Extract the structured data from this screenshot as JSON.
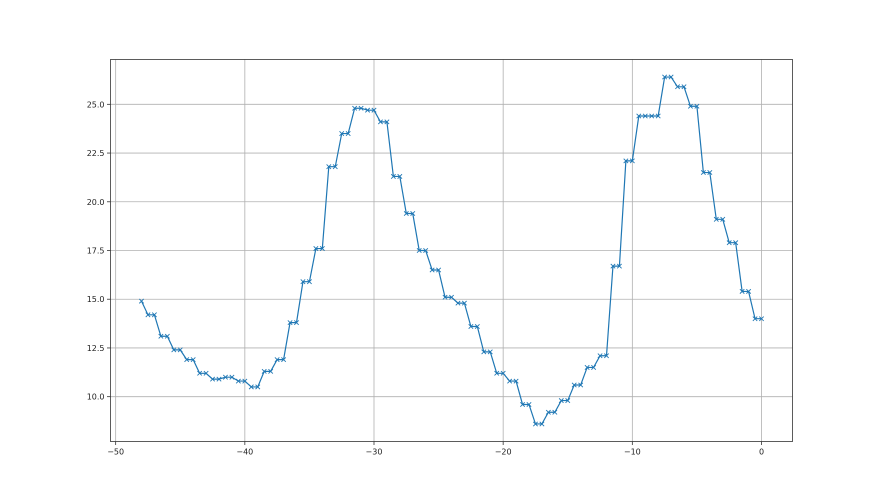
{
  "chart_data": {
    "type": "line",
    "title": "",
    "xlabel": "",
    "ylabel": "",
    "xlim": [
      -50.4,
      2.4
    ],
    "ylim": [
      7.7,
      27.3
    ],
    "grid": true,
    "marker": "x",
    "line_color": "#1f77b4",
    "x_ticks": [
      -50,
      -40,
      -30,
      -20,
      -10,
      0
    ],
    "x_tick_labels": [
      "−50",
      "−40",
      "−30",
      "−20",
      "−10",
      "0"
    ],
    "y_ticks": [
      10.0,
      12.5,
      15.0,
      17.5,
      20.0,
      22.5,
      25.0
    ],
    "y_tick_labels": [
      "10.0",
      "12.5",
      "15.0",
      "17.5",
      "20.0",
      "22.5",
      "25.0"
    ],
    "series": [
      {
        "x": [
          -48,
          -47.5,
          -47,
          -46.5,
          -46,
          -45.5,
          -45,
          -44.5,
          -44,
          -43.5,
          -43,
          -42.5,
          -42,
          -41.5,
          -41,
          -40.5,
          -40,
          -39.5,
          -39,
          -38.5,
          -38,
          -37.5,
          -37,
          -36.5,
          -36,
          -35.5,
          -35,
          -34.5,
          -34,
          -33.5,
          -33,
          -32.5,
          -32,
          -31.5,
          -31,
          -30.5,
          -30,
          -29.5,
          -29,
          -28.5,
          -28,
          -27.5,
          -27,
          -26.5,
          -26,
          -25.5,
          -25,
          -24.5,
          -24,
          -23.5,
          -23,
          -22.5,
          -22,
          -21.5,
          -21,
          -20.5,
          -20,
          -19.5,
          -19,
          -18.5,
          -18,
          -17.5,
          -17,
          -16.5,
          -16,
          -15.5,
          -15,
          -14.5,
          -14,
          -13.5,
          -13,
          -12.5,
          -12,
          -11.5,
          -11,
          -10.5,
          -10,
          -9.5,
          -9,
          -8.5,
          -8,
          -7.5,
          -7,
          -6.5,
          -6,
          -5.5,
          -5,
          -4.5,
          -4,
          -3.5,
          -3,
          -2.5,
          -2,
          -1.5,
          -1,
          -0.5,
          0
        ],
        "y": [
          14.9,
          14.2,
          14.2,
          13.1,
          13.1,
          12.4,
          12.4,
          11.9,
          11.9,
          11.2,
          11.2,
          10.9,
          10.9,
          11.0,
          11.0,
          10.8,
          10.8,
          10.5,
          10.5,
          11.3,
          11.3,
          11.9,
          11.9,
          13.8,
          13.8,
          15.9,
          15.9,
          17.6,
          17.6,
          21.8,
          21.8,
          23.5,
          23.5,
          24.8,
          24.8,
          24.7,
          24.7,
          24.1,
          24.1,
          21.3,
          21.3,
          19.4,
          19.4,
          17.5,
          17.5,
          16.5,
          16.5,
          15.1,
          15.1,
          14.8,
          14.8,
          13.6,
          13.6,
          12.3,
          12.3,
          11.2,
          11.2,
          10.8,
          10.8,
          9.6,
          9.6,
          8.6,
          8.6,
          9.2,
          9.2,
          9.8,
          9.8,
          10.6,
          10.6,
          11.5,
          11.5,
          12.1,
          12.1,
          16.7,
          16.7,
          22.1,
          22.1,
          24.4,
          24.4,
          24.4,
          24.4,
          26.4,
          26.4,
          25.9,
          25.9,
          24.9,
          24.9,
          21.5,
          21.5,
          19.1,
          19.1,
          17.9,
          17.9,
          15.4,
          15.4,
          14.0,
          14.0
        ]
      }
    ]
  }
}
